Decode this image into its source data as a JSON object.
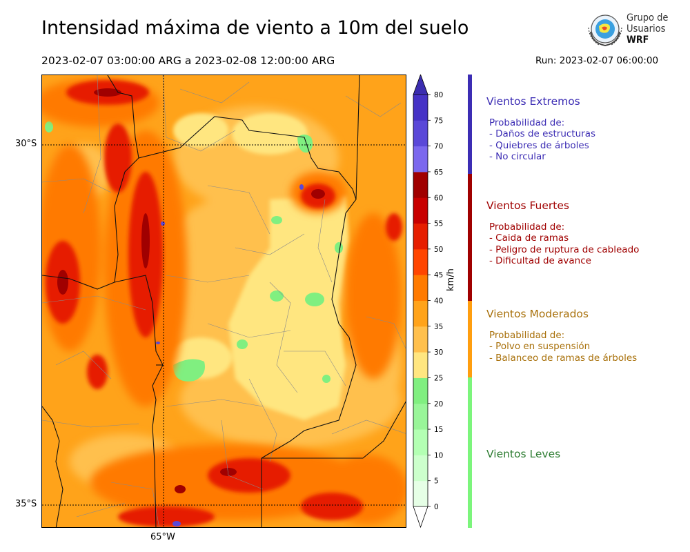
{
  "header": {
    "title": "Intensidad máxima de viento a 10m del suelo",
    "period": "2023-02-07 03:00:00 ARG  a  2023-02-08 12:00:00 ARG",
    "run": "Run: 2023-02-07 06:00:00"
  },
  "logo": {
    "line1": "Grupo de",
    "line2": "Usuarios",
    "line3": "WRF"
  },
  "map": {
    "lat_labels": [
      "30°S",
      "35°S"
    ],
    "lon_labels": [
      "65°W"
    ]
  },
  "colorbar": {
    "unit": "km/h",
    "ticks": [
      "0",
      "5",
      "10",
      "15",
      "20",
      "25",
      "30",
      "35",
      "40",
      "45",
      "50",
      "55",
      "60",
      "65",
      "70",
      "75",
      "80"
    ],
    "colors": [
      "#e6ffe6",
      "#ccffcc",
      "#b3ffb3",
      "#99f599",
      "#80ef80",
      "#ffe680",
      "#ffc04d",
      "#ffa31a",
      "#ff7a00",
      "#ff4500",
      "#e61e00",
      "#c80000",
      "#a00000",
      "#7b68ee",
      "#5a48d8",
      "#4633c6"
    ],
    "over_color": "#3b2db0",
    "under_color": "#ffffff"
  },
  "categories": [
    {
      "name": "Vientos Extremos",
      "color": "#3c2db4",
      "bar_color": "#3c2db4",
      "lines": [
        "Probabilidad de:",
        "- Daños de estructuras",
        "- Quiebres de árboles",
        "- No circular"
      ]
    },
    {
      "name": "Vientos Fuertes",
      "color": "#a00000",
      "bar_color": "#a00000",
      "lines": [
        "Probabilidad de:",
        "- Caida de ramas",
        "- Peligro de ruptura de cableado",
        "- Dificultad de avance"
      ]
    },
    {
      "name": "Vientos Moderados",
      "color": "#a8700a",
      "bar_color": "#ff9e0f",
      "lines": [
        "Probabilidad de:",
        "- Polvo en suspensión",
        "- Balanceo de ramas de árboles"
      ]
    },
    {
      "name": "Vientos Leves",
      "color": "#2e7d32",
      "bar_color": "#7cf57c",
      "lines": []
    }
  ]
}
